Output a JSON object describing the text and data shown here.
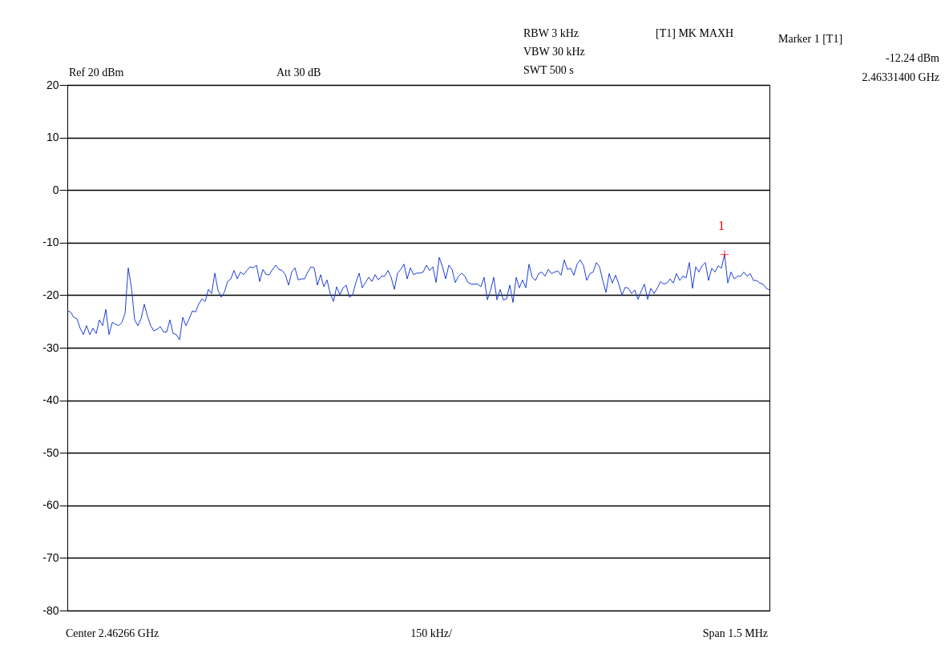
{
  "chart_data": {
    "type": "line",
    "categories": [
      null,
      null,
      null,
      null,
      null,
      null,
      null,
      null,
      null,
      null,
      null,
      null,
      null,
      null,
      null,
      null,
      null,
      null,
      null,
      null,
      null,
      null,
      null,
      null,
      null,
      null,
      null,
      null,
      null,
      null,
      null,
      null,
      null,
      null,
      null,
      null,
      null,
      null,
      null,
      null,
      null,
      null,
      null,
      null,
      null,
      null,
      null,
      null,
      null,
      null,
      null,
      null,
      null,
      null,
      null,
      null,
      null,
      null,
      null,
      null,
      null,
      null,
      null,
      null,
      null,
      null,
      null,
      null,
      null,
      null,
      null,
      null,
      null,
      null,
      null,
      null,
      null,
      null,
      null,
      null,
      null,
      null,
      null,
      null,
      null,
      null,
      null,
      null,
      null,
      null,
      null,
      null,
      null,
      null,
      null,
      null,
      null,
      null,
      null,
      null,
      null,
      null,
      null,
      null,
      null,
      null,
      null,
      null,
      null,
      null,
      null,
      null,
      null,
      null,
      null,
      null,
      null,
      null,
      null,
      null,
      null,
      null,
      null,
      null,
      null,
      null,
      null,
      null,
      null,
      null,
      null,
      null,
      null,
      null,
      null,
      null,
      null,
      null,
      null,
      null,
      null,
      null,
      null,
      null,
      null,
      null,
      null,
      null,
      null,
      null,
      null,
      null,
      null,
      null,
      null,
      null,
      null,
      null,
      null,
      null,
      null,
      null,
      null,
      null,
      null,
      null,
      null,
      null,
      null,
      null,
      null,
      null,
      null,
      null,
      null,
      null,
      null,
      null,
      null,
      null,
      null,
      null,
      null,
      null,
      null,
      null,
      null,
      null,
      null,
      null,
      null,
      null,
      null,
      null,
      null,
      null,
      null,
      null,
      null,
      null,
      null,
      null,
      null,
      null,
      null,
      null,
      null,
      null,
      null,
      null,
      null,
      null,
      null,
      null,
      null,
      null,
      null,
      null,
      null,
      null
    ],
    "series": [
      {
        "color": "#1f3fd6",
        "values": [
          -23.0,
          -23.2,
          -24.2,
          -24.5,
          -26.3,
          -27.5,
          -25.8,
          -27.5,
          -26.3,
          -27.3,
          -24.7,
          -25.8,
          -22.7,
          -27.5,
          -25.2,
          -25.5,
          -25.8,
          -25.2,
          -23.5,
          -14.8,
          -18.6,
          -24.7,
          -25.8,
          -24.5,
          -21.7,
          -24.0,
          -25.8,
          -26.8,
          -26.5,
          -26.0,
          -27.0,
          -27.0,
          -24.7,
          -27.3,
          -27.5,
          -28.5,
          -24.2,
          -25.8,
          -24.5,
          -23.0,
          -23.2,
          -21.7,
          -20.7,
          -21.2,
          -18.9,
          -19.7,
          -15.8,
          -19.1,
          -20.4,
          -19.4,
          -17.4,
          -16.9,
          -15.3,
          -16.9,
          -15.6,
          -16.1,
          -15.3,
          -14.6,
          -14.8,
          -14.3,
          -17.4,
          -15.1,
          -16.1,
          -16.1,
          -15.1,
          -14.3,
          -15.1,
          -15.3,
          -16.1,
          -18.1,
          -15.6,
          -14.8,
          -17.1,
          -16.9,
          -16.9,
          -15.6,
          -14.6,
          -14.8,
          -18.1,
          -16.1,
          -18.4,
          -17.1,
          -19.7,
          -21.2,
          -18.4,
          -19.9,
          -18.6,
          -18.1,
          -20.4,
          -19.9,
          -17.6,
          -15.8,
          -18.6,
          -17.6,
          -16.6,
          -17.4,
          -16.1,
          -17.1,
          -16.4,
          -16.4,
          -15.3,
          -16.6,
          -18.9,
          -15.8,
          -15.1,
          -14.1,
          -16.9,
          -14.8,
          -16.1,
          -15.8,
          -15.8,
          -15.6,
          -14.3,
          -15.3,
          -14.6,
          -17.6,
          -12.8,
          -14.6,
          -16.9,
          -14.3,
          -15.1,
          -17.6,
          -16.4,
          -15.8,
          -16.4,
          -17.6,
          -17.9,
          -17.9,
          -17.9,
          -18.4,
          -16.6,
          -20.9,
          -19.1,
          -16.6,
          -20.9,
          -18.9,
          -20.9,
          -20.7,
          -18.1,
          -21.4,
          -16.6,
          -18.6,
          -17.1,
          -18.6,
          -14.1,
          -16.6,
          -17.2,
          -15.9,
          -15.6,
          -16.4,
          -15.1,
          -15.9,
          -15.6,
          -15.4,
          -16.2,
          -13.3,
          -15.1,
          -14.9,
          -16.2,
          -14.1,
          -13.3,
          -14.4,
          -17.2,
          -15.9,
          -15.6,
          -13.8,
          -14.6,
          -17.2,
          -19.5,
          -15.9,
          -17.7,
          -16.2,
          -17.9,
          -20.0,
          -18.5,
          -18.7,
          -19.7,
          -19.0,
          -20.8,
          -19.2,
          -17.9,
          -20.8,
          -18.7,
          -19.7,
          -18.7,
          -17.4,
          -17.9,
          -17.7,
          -16.9,
          -17.7,
          -15.9,
          -17.2,
          -16.4,
          -16.7,
          -13.8,
          -18.7,
          -14.6,
          -15.6,
          -14.4,
          -13.8,
          -17.2,
          -14.9,
          -15.6,
          -14.4,
          -14.9,
          -12.24,
          -17.7,
          -15.6,
          -16.9,
          -16.4,
          -16.4,
          -15.6,
          -16.4,
          -15.9,
          -17.2,
          -17.2,
          -17.7,
          -17.9,
          -18.7,
          -19.0
        ]
      }
    ],
    "ylim": [
      -80,
      20
    ],
    "yticks": [
      20,
      10,
      0,
      -10,
      -20,
      -30,
      -40,
      -50,
      -60,
      -70,
      -80
    ],
    "tick_labels": "y",
    "grid": "y",
    "marker": "none",
    "line_style": "solid",
    "annotations": [
      "Ref 20 dBm",
      "Att 30 dB",
      "RBW 3 kHz",
      "VBW 30 kHz",
      "SWT 500 s",
      "[T1] MK MAXH",
      "Marker 1 [T1]",
      "-12.24 dBm",
      "2.46331400 GHz",
      "Center 2.46266 GHz",
      "150 kHz/",
      "Span 1.5 MHz",
      {
        "text": "1",
        "y": -12.24
      }
    ]
  }
}
